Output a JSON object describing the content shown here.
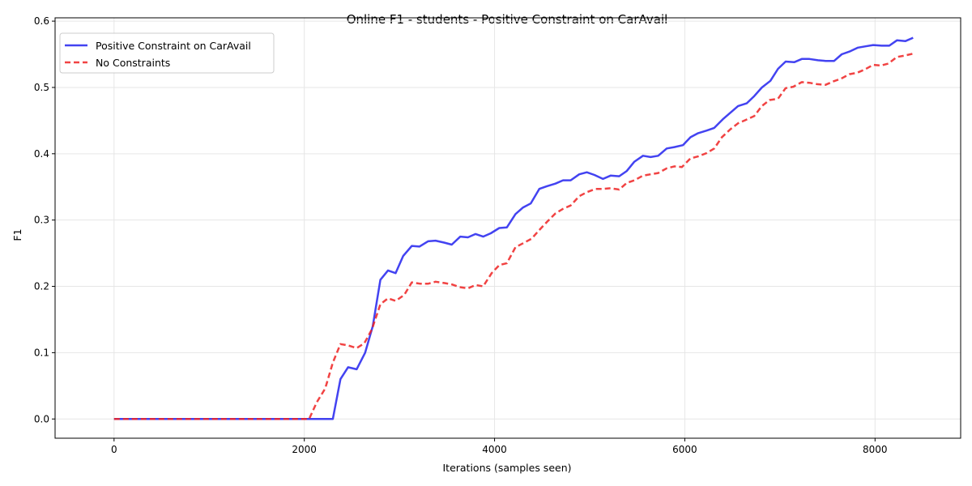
{
  "chart_data": {
    "type": "line",
    "title": "Online F1 - students - Positive Constraint on CarAvail",
    "xlabel": "Iterations (samples seen)",
    "ylabel": "F1",
    "xlim": [
      -620,
      8900
    ],
    "ylim": [
      -0.029,
      0.605
    ],
    "xticks": [
      0,
      2000,
      4000,
      6000,
      8000
    ],
    "xtick_labels": [
      "0",
      "2000",
      "4000",
      "6000",
      "8000"
    ],
    "yticks": [
      0.0,
      0.1,
      0.2,
      0.3,
      0.4,
      0.5,
      0.6
    ],
    "ytick_labels": [
      "0.0",
      "0.1",
      "0.2",
      "0.3",
      "0.4",
      "0.5",
      "0.6"
    ],
    "grid": true,
    "legend_position": "upper-left",
    "series": [
      {
        "name": "Positive Constraint on CarAvail",
        "color": "#2222ee",
        "style": "solid",
        "points": [
          [
            0,
            0
          ],
          [
            2300,
            0
          ],
          [
            2380,
            0.06
          ],
          [
            2460,
            0.078
          ],
          [
            2550,
            0.075
          ],
          [
            2640,
            0.1
          ],
          [
            2720,
            0.14
          ],
          [
            2800,
            0.21
          ],
          [
            2880,
            0.224
          ],
          [
            2960,
            0.22
          ],
          [
            3040,
            0.246
          ],
          [
            3130,
            0.261
          ],
          [
            3210,
            0.26
          ],
          [
            3300,
            0.268
          ],
          [
            3380,
            0.269
          ],
          [
            3470,
            0.266
          ],
          [
            3550,
            0.263
          ],
          [
            3640,
            0.275
          ],
          [
            3720,
            0.274
          ],
          [
            3800,
            0.279
          ],
          [
            3880,
            0.275
          ],
          [
            3960,
            0.28
          ],
          [
            4050,
            0.288
          ],
          [
            4130,
            0.289
          ],
          [
            4220,
            0.309
          ],
          [
            4300,
            0.319
          ],
          [
            4380,
            0.325
          ],
          [
            4470,
            0.347
          ],
          [
            4550,
            0.351
          ],
          [
            4640,
            0.355
          ],
          [
            4720,
            0.36
          ],
          [
            4800,
            0.36
          ],
          [
            4890,
            0.369
          ],
          [
            4970,
            0.372
          ],
          [
            5050,
            0.368
          ],
          [
            5140,
            0.362
          ],
          [
            5220,
            0.367
          ],
          [
            5310,
            0.366
          ],
          [
            5390,
            0.374
          ],
          [
            5470,
            0.388
          ],
          [
            5560,
            0.397
          ],
          [
            5640,
            0.395
          ],
          [
            5720,
            0.397
          ],
          [
            5810,
            0.408
          ],
          [
            5890,
            0.41
          ],
          [
            5980,
            0.413
          ],
          [
            6060,
            0.425
          ],
          [
            6140,
            0.431
          ],
          [
            6230,
            0.435
          ],
          [
            6310,
            0.439
          ],
          [
            6400,
            0.452
          ],
          [
            6480,
            0.462
          ],
          [
            6560,
            0.472
          ],
          [
            6650,
            0.476
          ],
          [
            6730,
            0.487
          ],
          [
            6810,
            0.5
          ],
          [
            6900,
            0.51
          ],
          [
            6980,
            0.528
          ],
          [
            7060,
            0.539
          ],
          [
            7150,
            0.538
          ],
          [
            7230,
            0.543
          ],
          [
            7310,
            0.543
          ],
          [
            7400,
            0.541
          ],
          [
            7480,
            0.54
          ],
          [
            7570,
            0.54
          ],
          [
            7650,
            0.55
          ],
          [
            7730,
            0.554
          ],
          [
            7820,
            0.56
          ],
          [
            7900,
            0.562
          ],
          [
            7980,
            0.564
          ],
          [
            8070,
            0.563
          ],
          [
            8150,
            0.563
          ],
          [
            8230,
            0.571
          ],
          [
            8320,
            0.57
          ],
          [
            8400,
            0.575
          ]
        ]
      },
      {
        "name": "No Constraints",
        "color": "#ee2222",
        "style": "dashed",
        "points": [
          [
            0,
            0
          ],
          [
            2050,
            0
          ],
          [
            2130,
            0.025
          ],
          [
            2220,
            0.046
          ],
          [
            2300,
            0.085
          ],
          [
            2380,
            0.113
          ],
          [
            2460,
            0.111
          ],
          [
            2550,
            0.107
          ],
          [
            2630,
            0.114
          ],
          [
            2710,
            0.135
          ],
          [
            2800,
            0.173
          ],
          [
            2880,
            0.182
          ],
          [
            2960,
            0.178
          ],
          [
            3050,
            0.187
          ],
          [
            3130,
            0.206
          ],
          [
            3220,
            0.204
          ],
          [
            3300,
            0.204
          ],
          [
            3380,
            0.207
          ],
          [
            3470,
            0.205
          ],
          [
            3550,
            0.203
          ],
          [
            3630,
            0.199
          ],
          [
            3720,
            0.197
          ],
          [
            3800,
            0.202
          ],
          [
            3880,
            0.2
          ],
          [
            3970,
            0.22
          ],
          [
            4050,
            0.232
          ],
          [
            4130,
            0.235
          ],
          [
            4220,
            0.259
          ],
          [
            4300,
            0.265
          ],
          [
            4390,
            0.272
          ],
          [
            4470,
            0.285
          ],
          [
            4550,
            0.297
          ],
          [
            4640,
            0.31
          ],
          [
            4720,
            0.317
          ],
          [
            4800,
            0.322
          ],
          [
            4890,
            0.336
          ],
          [
            4970,
            0.342
          ],
          [
            5060,
            0.347
          ],
          [
            5140,
            0.347
          ],
          [
            5220,
            0.348
          ],
          [
            5310,
            0.346
          ],
          [
            5390,
            0.356
          ],
          [
            5470,
            0.36
          ],
          [
            5560,
            0.367
          ],
          [
            5640,
            0.369
          ],
          [
            5720,
            0.371
          ],
          [
            5810,
            0.378
          ],
          [
            5890,
            0.381
          ],
          [
            5970,
            0.38
          ],
          [
            6060,
            0.393
          ],
          [
            6140,
            0.396
          ],
          [
            6230,
            0.401
          ],
          [
            6310,
            0.408
          ],
          [
            6390,
            0.425
          ],
          [
            6480,
            0.437
          ],
          [
            6560,
            0.446
          ],
          [
            6640,
            0.451
          ],
          [
            6730,
            0.457
          ],
          [
            6810,
            0.472
          ],
          [
            6890,
            0.481
          ],
          [
            6980,
            0.483
          ],
          [
            7060,
            0.499
          ],
          [
            7140,
            0.501
          ],
          [
            7230,
            0.508
          ],
          [
            7310,
            0.507
          ],
          [
            7390,
            0.505
          ],
          [
            7480,
            0.504
          ],
          [
            7560,
            0.509
          ],
          [
            7640,
            0.513
          ],
          [
            7730,
            0.52
          ],
          [
            7810,
            0.522
          ],
          [
            7890,
            0.527
          ],
          [
            7980,
            0.534
          ],
          [
            8060,
            0.533
          ],
          [
            8140,
            0.536
          ],
          [
            8230,
            0.546
          ],
          [
            8310,
            0.548
          ],
          [
            8400,
            0.551
          ]
        ]
      }
    ]
  }
}
